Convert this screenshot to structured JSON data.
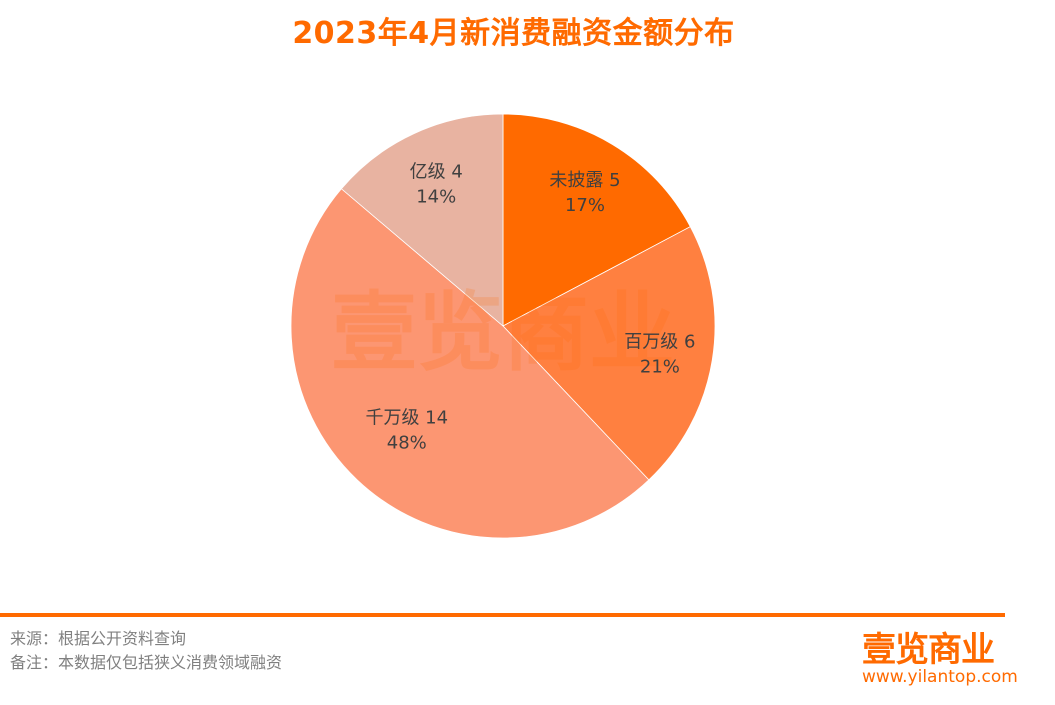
{
  "chart_data": {
    "type": "pie",
    "title": "2023年4月新消费融资金额分布",
    "categories": [
      "未披露",
      "百万级",
      "千万级",
      "亿级"
    ],
    "values": [
      5,
      6,
      14,
      4
    ],
    "percent_labels": [
      "17%",
      "21%",
      "48%",
      "14%"
    ],
    "colors": [
      "#FF6A00",
      "#FF8040",
      "#FC9672",
      "#E8B3A1"
    ],
    "start": "top, clockwise",
    "legend": "none",
    "data_labels": "category value and percent inside slices"
  },
  "footer": {
    "source": "来源：根据公开资料查询",
    "note": "备注：本数据仅包括狭义消费领域融资",
    "logo_text": "壹览商业",
    "url": "www.yilantop.com"
  },
  "watermark": "壹览商业"
}
